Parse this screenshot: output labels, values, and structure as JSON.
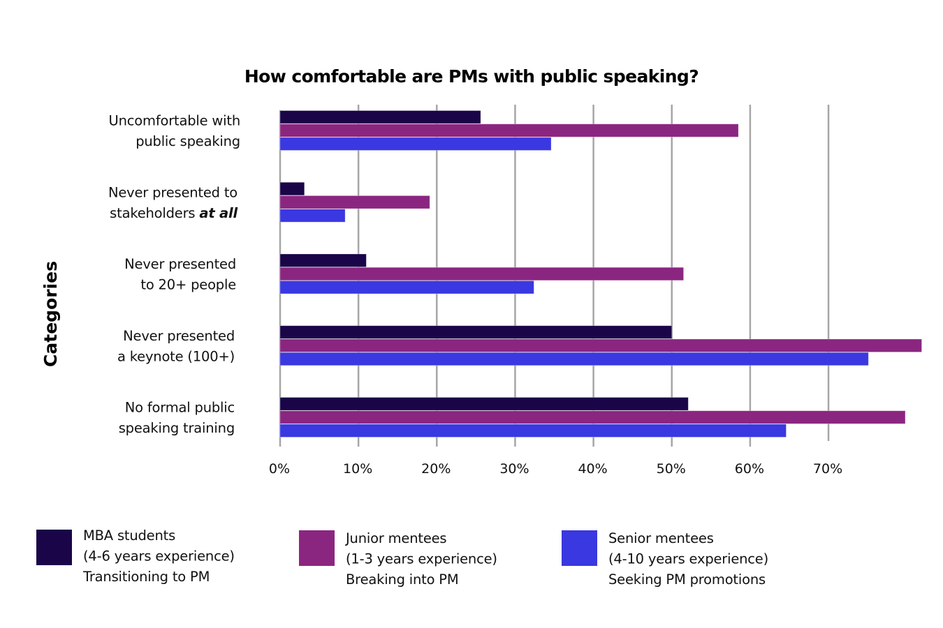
{
  "chart_data": {
    "type": "bar",
    "orientation": "horizontal",
    "title": "How comfortable are PMs with public speaking?",
    "xlabel": "",
    "ylabel": "Categories",
    "xlim": [
      0,
      82
    ],
    "x_ticks": [
      "0%",
      "10%",
      "20%",
      "30%",
      "40%",
      "50%",
      "60%",
      "70%"
    ],
    "x_tick_values": [
      0,
      10,
      20,
      30,
      40,
      50,
      60,
      70
    ],
    "grid": true,
    "legend_position": "bottom",
    "categories": [
      {
        "lines": [
          "Uncomfortable with",
          "public speaking"
        ],
        "emphasis": ""
      },
      {
        "lines": [
          "Never presented to",
          "stakeholders "
        ],
        "emphasis": "at all"
      },
      {
        "lines": [
          "Never presented",
          "to 20+ people"
        ],
        "emphasis": ""
      },
      {
        "lines": [
          "Never presented",
          "a keynote (100+)"
        ],
        "emphasis": ""
      },
      {
        "lines": [
          "No formal public",
          "speaking training"
        ],
        "emphasis": ""
      }
    ],
    "series": [
      {
        "name": "MBA students",
        "legend_lines": [
          "MBA students",
          "(4-6 years experience)",
          "Transitioning to PM"
        ],
        "color": "#1a0548",
        "values": [
          25.6,
          3.1,
          11.0,
          50.0,
          52.1
        ]
      },
      {
        "name": "Junior mentees",
        "legend_lines": [
          "Junior mentees",
          "(1-3 years experience)",
          "Breaking into PM"
        ],
        "color": "#8b2680",
        "values": [
          58.5,
          19.1,
          51.5,
          81.9,
          79.8
        ]
      },
      {
        "name": "Senior mentees",
        "legend_lines": [
          "Senior mentees",
          "(4-10 years experience)",
          "Seeking PM promotions"
        ],
        "color": "#3a38e0",
        "values": [
          34.6,
          8.3,
          32.4,
          75.1,
          64.6
        ]
      }
    ]
  }
}
